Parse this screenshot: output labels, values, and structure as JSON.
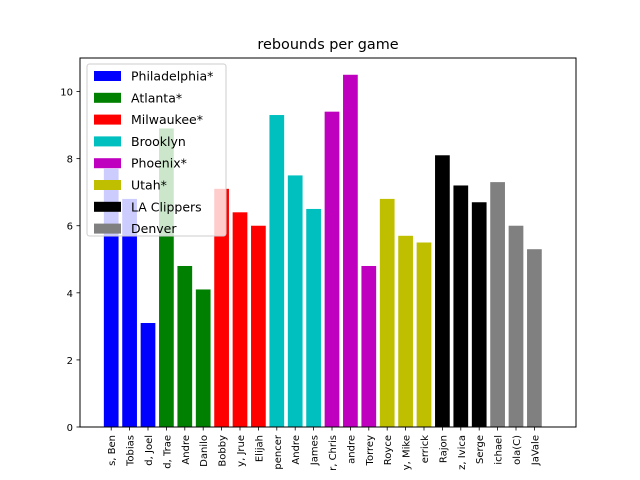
{
  "chart_data": {
    "type": "bar",
    "title": "rebounds per game",
    "xlabel": "",
    "ylabel": "",
    "ylim": [
      0,
      11
    ],
    "yticks": [
      0,
      2,
      4,
      6,
      8,
      10
    ],
    "grid": false,
    "legend_position": "top-left",
    "categories": [
      "s, Ben",
      "Tobias",
      "d, Joel",
      "d, Trae",
      "Andre",
      "Danilo",
      "Bobby",
      "y, Jrue",
      "Elijah",
      "pencer",
      "Andre",
      "James",
      "r, Chris",
      "andre",
      "Torrey",
      "Royce",
      "y, Mike",
      "errick",
      "Rajon",
      "z, Ivica",
      "Serge",
      "ichael",
      "ola(C)",
      "JaVale"
    ],
    "values": [
      7.7,
      6.8,
      3.1,
      8.9,
      4.8,
      4.1,
      7.1,
      6.4,
      6.0,
      9.3,
      7.5,
      6.5,
      9.4,
      10.5,
      4.8,
      6.8,
      5.7,
      5.5,
      8.1,
      7.2,
      6.7,
      7.3,
      6.0,
      5.3
    ],
    "series": [
      {
        "name": "Philadelphia*",
        "color": "#0000ff",
        "start": 0,
        "count": 3
      },
      {
        "name": "Atlanta*",
        "color": "#008000",
        "start": 3,
        "count": 3
      },
      {
        "name": "Milwaukee*",
        "color": "#ff0000",
        "start": 6,
        "count": 3
      },
      {
        "name": "Brooklyn",
        "color": "#00bfbf",
        "start": 9,
        "count": 3
      },
      {
        "name": "Phoenix*",
        "color": "#bf00bf",
        "start": 12,
        "count": 3
      },
      {
        "name": "Utah*",
        "color": "#bfbf00",
        "start": 15,
        "count": 3
      },
      {
        "name": "LA Clippers",
        "color": "#000000",
        "start": 18,
        "count": 3
      },
      {
        "name": "Denver",
        "color": "#808080",
        "start": 21,
        "count": 3
      }
    ]
  }
}
